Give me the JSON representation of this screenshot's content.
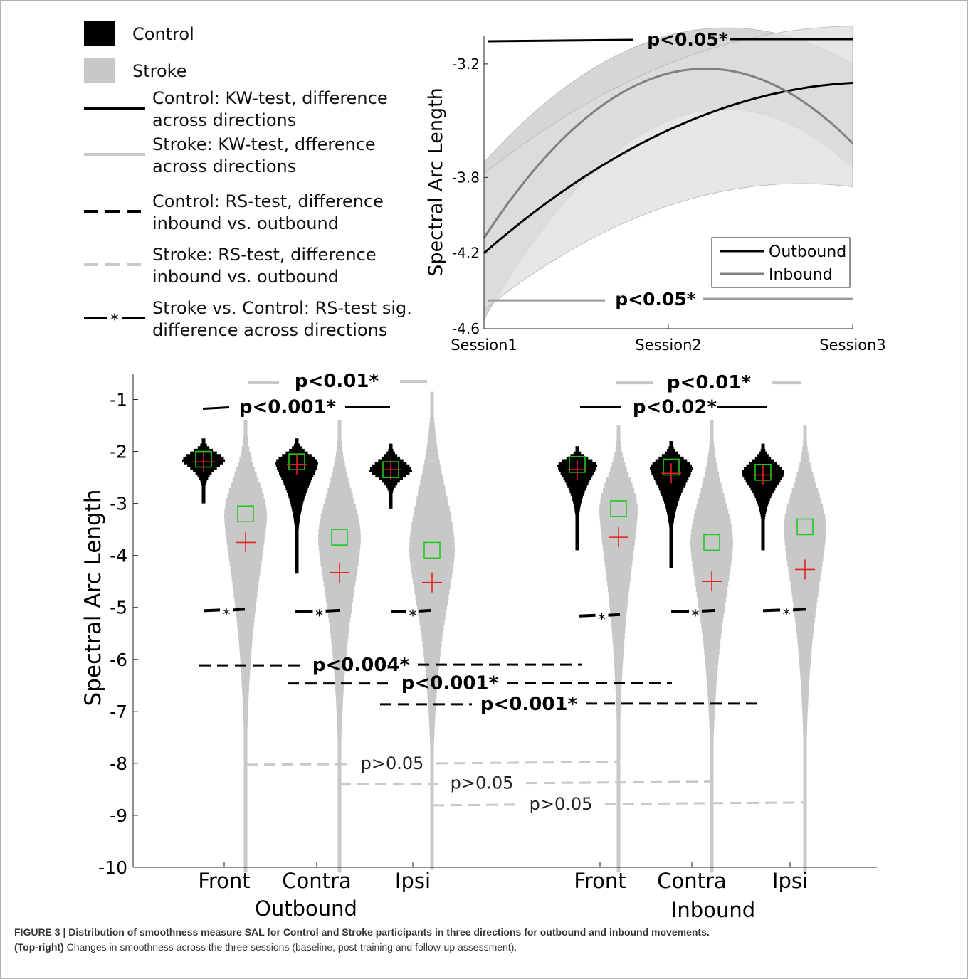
{
  "legend": {
    "items": [
      {
        "kind": "patch",
        "color": "#000000",
        "label": [
          "Control"
        ]
      },
      {
        "kind": "patch",
        "color": "#c8c8c8",
        "label": [
          "Stroke"
        ]
      },
      {
        "kind": "line",
        "dash": "solid",
        "color": "#000000",
        "label": [
          "Control: KW-test, difference",
          "across directions"
        ]
      },
      {
        "kind": "line",
        "dash": "solid",
        "color": "#c8c8c8",
        "label": [
          "Stroke: KW-test, dfference",
          "across directions"
        ]
      },
      {
        "kind": "line",
        "dash": "dash",
        "color": "#000000",
        "label": [
          "Control: RS-test, difference",
          "inbound vs. outbound"
        ]
      },
      {
        "kind": "line",
        "dash": "dash",
        "color": "#c8c8c8",
        "label": [
          "Stroke: RS-test, difference",
          "inbound vs. outbound"
        ]
      },
      {
        "kind": "line",
        "dash": "dashstar",
        "color": "#000000",
        "label": [
          "Stroke vs. Control: RS-test sig.",
          "difference across directions"
        ]
      }
    ]
  },
  "chart_data": [
    {
      "type": "line",
      "panel": "top-right",
      "ylabel": "Spectral Arc Length",
      "xlabel": "",
      "x": [
        "Session1",
        "Session2",
        "Session3"
      ],
      "yticks": [
        "-3.2",
        "-3.8",
        "-4.2",
        "-4.6"
      ],
      "ylim": [
        -4.6,
        -3.05
      ],
      "series": [
        {
          "name": "Outbound",
          "color": "#000000",
          "values": [
            -4.2,
            -3.55,
            -3.3
          ],
          "band_low": [
            -4.5,
            -3.95,
            -3.85
          ],
          "band_high": [
            -3.78,
            -3.2,
            -3.0
          ]
        },
        {
          "name": "Inbound",
          "color": "#808080",
          "values": [
            -4.12,
            -3.25,
            -3.62
          ],
          "band_low": [
            -4.55,
            -3.5,
            -3.75
          ],
          "band_high": [
            -3.72,
            -3.05,
            -3.2
          ]
        }
      ],
      "annotations": [
        {
          "text": "p<0.05*",
          "color": "#000000",
          "y": -3.08
        },
        {
          "text": "p<0.05*",
          "color": "#999999",
          "y": -4.45
        }
      ],
      "legend_position": "bottom-right"
    },
    {
      "type": "violin",
      "panel": "bottom",
      "ylabel": "Spectral Arc Length",
      "ylim": [
        -10,
        -0.5
      ],
      "yticks": [
        "-1",
        "-2",
        "-3",
        "-4",
        "-5",
        "-6",
        "-7",
        "-8",
        "-9",
        "-10"
      ],
      "categories": [
        "Front",
        "Contra",
        "Ipsi",
        "Front",
        "Contra",
        "Ipsi"
      ],
      "groups": [
        "Outbound",
        "Inbound"
      ],
      "groups_display": [
        "Outbound",
        "Inbound"
      ],
      "series": [
        {
          "name": "Control",
          "color": "#000000",
          "median": [
            -2.15,
            -2.2,
            -2.35,
            -2.25,
            -2.3,
            -2.4
          ],
          "mean": [
            -2.2,
            -2.25,
            -2.35,
            -2.35,
            -2.42,
            -2.45
          ]
        },
        {
          "name": "Stroke",
          "color": "#c8c8c8",
          "median": [
            -3.2,
            -3.65,
            -3.9,
            -3.1,
            -3.75,
            -3.45
          ],
          "mean": [
            -3.75,
            -4.33,
            -4.52,
            -3.65,
            -4.5,
            -4.27
          ]
        }
      ],
      "annotations": [
        {
          "text": "p<0.01*",
          "y": -0.65
        },
        {
          "text": "p<0.001*",
          "y": -1.15
        },
        {
          "text": "p<0.01*",
          "y": -0.68
        },
        {
          "text": "p<0.02*",
          "y": -1.15
        },
        {
          "text": "*",
          "y": -5.05
        },
        {
          "text": "*",
          "y": -5.07
        },
        {
          "text": "*",
          "y": -5.07
        },
        {
          "text": "*",
          "y": -5.15
        },
        {
          "text": "*",
          "y": -5.07
        },
        {
          "text": "*",
          "y": -5.05
        },
        {
          "text": "p<0.004*",
          "y": -6.1
        },
        {
          "text": "p<0.001*",
          "y": -6.45
        },
        {
          "text": "p<0.001*",
          "y": -6.85
        },
        {
          "text": "p>0.05",
          "y": -8.0
        },
        {
          "text": "p>0.05",
          "y": -8.38
        },
        {
          "text": "p>0.05",
          "y": -8.78
        }
      ]
    }
  ],
  "caption": {
    "bold": "FIGURE 3 | Distribution of smoothness measure SAL for Control and Stroke participants in three directions for outbound and inbound movements.",
    "bold2": "(Top-right)",
    "rest": " Changes in smoothness across the three sessions (baseline, post-training and follow-up assessment)."
  }
}
